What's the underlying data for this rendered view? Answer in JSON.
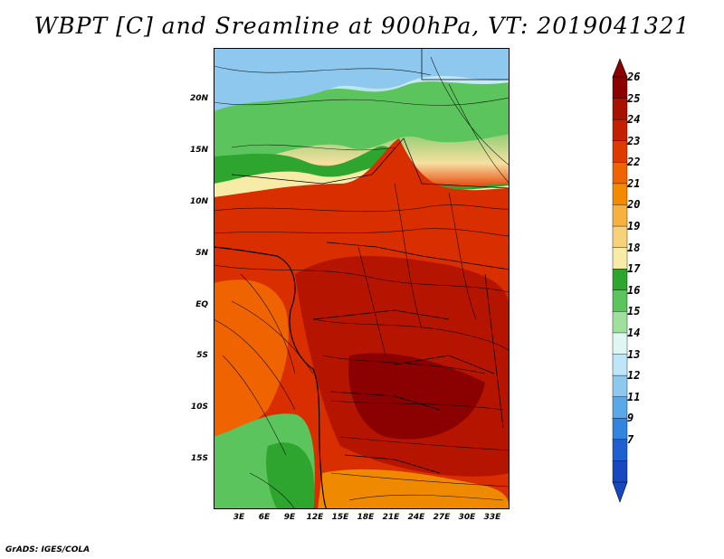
{
  "title": "WBPT [C] and Sreamline at 900hPa, VT: 2019041321",
  "credit": "GrADS: IGES/COLA",
  "map": {
    "type": "filled contour map with streamlines",
    "variable": "Wet-bulb potential temperature",
    "units": "C",
    "level": "900hPa",
    "valid_time": "2019041321",
    "lat_range": [
      -19,
      24
    ],
    "lon_range": [
      0,
      35
    ],
    "lat_ticks": [
      "20N",
      "15N",
      "10N",
      "5N",
      "EQ",
      "5S",
      "10S",
      "15S"
    ],
    "lon_ticks": [
      "3E",
      "6E",
      "9E",
      "12E",
      "15E",
      "18E",
      "21E",
      "24E",
      "27E",
      "30E",
      "33E"
    ]
  },
  "colorbar": {
    "labels": [
      "26",
      "25",
      "24",
      "23",
      "22",
      "21",
      "20",
      "19",
      "18",
      "17",
      "16",
      "15",
      "14",
      "13",
      "12",
      "11",
      "9",
      "7"
    ],
    "colors": [
      "#8b0000",
      "#a81000",
      "#c42000",
      "#dd3a00",
      "#ef6400",
      "#f38a00",
      "#f7b13e",
      "#f8d27a",
      "#f6eca8",
      "#2ea52e",
      "#5cc45c",
      "#9fe09f",
      "#dff7f3",
      "#bfe6f8",
      "#8ec8ef",
      "#5aa8e8",
      "#3284dd",
      "#1f5fd0",
      "#1848c0"
    ]
  }
}
